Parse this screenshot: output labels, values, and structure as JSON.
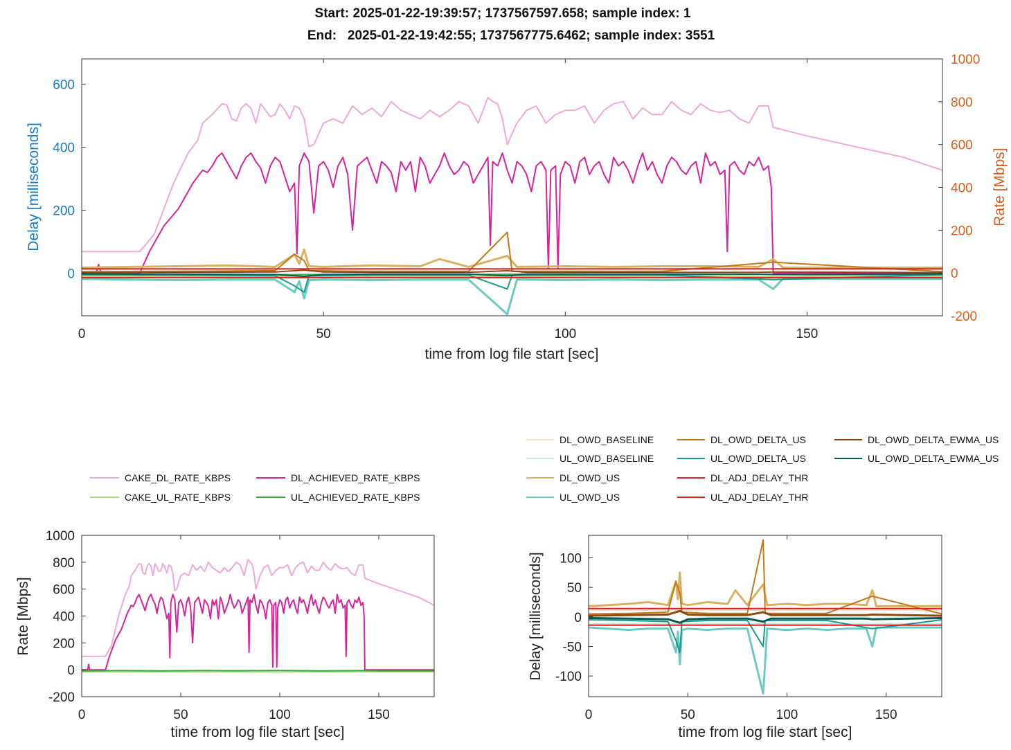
{
  "title": {
    "line1": "Start: 2025-01-22-19:39:57; 1737567597.658; sample index: 1",
    "line2": "End:   2025-01-22-19:42:55; 1737567775.6462; sample index: 3551"
  },
  "colors": {
    "cake_dl": "#f0a8d8",
    "dl_achieved": "#d4259c",
    "cake_ul": "#a8dc88",
    "ul_achieved": "#3da83a",
    "dl_owd_baseline": "#f6dcc0",
    "ul_owd_baseline": "#c6ece6",
    "dl_owd_us": "#d8b060",
    "ul_owd_us": "#6ccac0",
    "dl_owd_delta": "#c07818",
    "ul_owd_delta": "#1a9a8a",
    "dl_adj_thr": "#e02020",
    "ul_adj_thr": "#e02020",
    "dl_ewma": "#8a4a12",
    "ul_ewma": "#0a5a50",
    "left_axis": "#1a7ac0",
    "right_axis": "#d95f1a"
  },
  "legend_rate": [
    {
      "label": "CAKE_DL_RATE_KBPS",
      "color": "#f0a8d8"
    },
    {
      "label": "DL_ACHIEVED_RATE_KBPS",
      "color": "#d4259c"
    },
    {
      "label": "CAKE_UL_RATE_KBPS",
      "color": "#a8dc88"
    },
    {
      "label": "UL_ACHIEVED_RATE_KBPS",
      "color": "#3da83a"
    }
  ],
  "legend_delay": [
    {
      "label": "DL_OWD_BASELINE",
      "color": "#f6dcc0"
    },
    {
      "label": "DL_OWD_DELTA_US",
      "color": "#c07818"
    },
    {
      "label": "DL_OWD_DELTA_EWMA_US",
      "color": "#8a4a12"
    },
    {
      "label": "UL_OWD_BASELINE",
      "color": "#c6ece6"
    },
    {
      "label": "UL_OWD_DELTA_US",
      "color": "#1a9a8a"
    },
    {
      "label": "UL_OWD_DELTA_EWMA_US",
      "color": "#0a5a50"
    },
    {
      "label": "DL_OWD_US",
      "color": "#d8b060"
    },
    {
      "label": "DL_ADJ_DELAY_THR",
      "color": "#e02020"
    },
    {
      "label": "UL_OWD_US",
      "color": "#6ccac0"
    },
    {
      "label": "UL_ADJ_DELAY_THR",
      "color": "#e02020"
    }
  ],
  "chart_data": [
    {
      "type": "line",
      "id": "top",
      "xlabel": "time from log file start [sec]",
      "ylabel": "Delay [milliseconds]",
      "y2label": "Rate [Mbps]",
      "xlim": [
        0,
        178
      ],
      "ylim": [
        -135,
        680
      ],
      "y2lim": [
        -200,
        1000
      ],
      "xticks": [
        0,
        50,
        100,
        150
      ],
      "yticks": [
        0,
        200,
        400,
        600
      ],
      "y2ticks": [
        -200,
        0,
        200,
        400,
        600,
        800,
        1000
      ],
      "grid": false,
      "series_axes": {
        "rate": "right",
        "delay": "left"
      }
    },
    {
      "type": "line",
      "id": "rate",
      "xlabel": "time from log file start [sec]",
      "ylabel": "Rate [Mbps]",
      "xlim": [
        0,
        178
      ],
      "ylim": [
        -200,
        1000
      ],
      "xticks": [
        0,
        50,
        100,
        150
      ],
      "yticks": [
        -200,
        0,
        200,
        400,
        600,
        800,
        1000
      ],
      "grid": false
    },
    {
      "type": "line",
      "id": "delay",
      "xlabel": "time from log file start [sec]",
      "ylabel": "Delay [milliseconds]",
      "xlim": [
        0,
        178
      ],
      "ylim": [
        -135,
        138
      ],
      "xticks": [
        0,
        50,
        100,
        150
      ],
      "yticks": [
        -100,
        -50,
        0,
        50,
        100
      ],
      "grid": false
    }
  ],
  "series_data": {
    "cake_dl_rate_mbps": {
      "x": [
        0,
        12,
        15,
        19,
        22,
        24,
        25,
        27,
        29,
        30,
        31,
        32,
        33,
        34,
        35,
        36,
        37,
        38,
        39,
        40,
        41,
        42,
        43,
        44,
        45,
        46,
        47,
        48,
        49,
        50,
        52,
        54,
        56,
        58,
        60,
        62,
        64,
        66,
        68,
        70,
        72,
        74,
        76,
        78,
        80,
        82,
        84,
        85,
        86,
        87,
        88,
        90,
        92,
        94,
        96,
        98,
        100,
        102,
        104,
        106,
        108,
        110,
        112,
        114,
        116,
        118,
        120,
        122,
        124,
        126,
        128,
        130,
        132,
        134,
        136,
        138,
        140,
        142,
        143,
        150,
        160,
        170,
        178
      ],
      "y": [
        100,
        100,
        180,
        420,
        560,
        620,
        700,
        740,
        790,
        785,
        720,
        710,
        770,
        790,
        770,
        700,
        790,
        760,
        730,
        740,
        790,
        760,
        720,
        780,
        770,
        720,
        590,
        600,
        650,
        700,
        720,
        700,
        780,
        740,
        770,
        730,
        800,
        760,
        740,
        720,
        760,
        730,
        760,
        800,
        780,
        700,
        820,
        800,
        790,
        720,
        600,
        700,
        760,
        780,
        700,
        740,
        760,
        760,
        780,
        700,
        760,
        790,
        800,
        720,
        770,
        740,
        740,
        800,
        760,
        740,
        790,
        760,
        750,
        760,
        720,
        700,
        780,
        780,
        680,
        640,
        590,
        540,
        480
      ]
    },
    "dl_achieved_mbps": {
      "x": [
        0,
        3,
        3.5,
        4,
        12,
        14,
        17,
        20,
        23,
        25,
        26,
        27,
        28,
        29,
        30,
        31,
        32,
        33,
        34,
        35,
        36,
        37,
        38,
        39,
        40,
        41,
        42,
        43,
        44,
        44.5,
        45,
        46,
        47,
        48,
        49,
        50,
        51,
        52,
        53,
        54,
        55,
        56,
        57,
        58,
        59,
        60,
        61,
        62,
        63,
        64,
        65,
        66,
        67,
        68,
        69,
        70,
        71,
        72,
        73,
        74,
        75,
        76,
        77,
        78,
        79,
        80,
        81,
        82,
        83,
        84,
        84.5,
        85,
        86,
        87,
        88,
        89,
        90,
        91,
        92,
        93,
        94,
        95,
        96,
        96.5,
        97,
        98,
        98.5,
        99,
        100,
        101,
        102,
        103,
        104,
        105,
        106,
        107,
        108,
        109,
        110,
        111,
        112,
        113,
        114,
        115,
        116,
        117,
        118,
        119,
        120,
        121,
        122,
        123,
        124,
        125,
        126,
        127,
        128,
        129,
        130,
        131,
        132,
        133,
        133.5,
        134,
        135,
        136,
        137,
        138,
        139,
        140,
        141,
        142,
        142.6,
        143,
        150,
        160,
        170,
        178
      ],
      "y": [
        0,
        0,
        40,
        0,
        0,
        100,
        220,
        300,
        420,
        480,
        470,
        500,
        540,
        560,
        520,
        480,
        440,
        500,
        540,
        560,
        520,
        490,
        420,
        500,
        540,
        520,
        450,
        380,
        420,
        90,
        500,
        560,
        520,
        280,
        500,
        520,
        480,
        400,
        500,
        540,
        460,
        200,
        500,
        520,
        540,
        480,
        420,
        520,
        500,
        470,
        380,
        520,
        480,
        520,
        380,
        540,
        500,
        420,
        460,
        500,
        560,
        500,
        460,
        480,
        520,
        500,
        420,
        460,
        500,
        540,
        130,
        520,
        500,
        560,
        480,
        420,
        520,
        500,
        460,
        380,
        500,
        520,
        480,
        20,
        480,
        500,
        20,
        460,
        520,
        500,
        420,
        520,
        540,
        460,
        500,
        520,
        460,
        420,
        540,
        500,
        520,
        480,
        420,
        500,
        560,
        480,
        520,
        460,
        420,
        500,
        540,
        520,
        480,
        460,
        500,
        520,
        420,
        560,
        500,
        520,
        460,
        480,
        100,
        500,
        520,
        480,
        460,
        520,
        500,
        540,
        480,
        500,
        400,
        0,
        0,
        0,
        0,
        0
      ]
    },
    "cake_ul_rate_mbps": {
      "x": [
        0,
        178
      ],
      "y": [
        -15,
        -15
      ]
    },
    "ul_achieved_mbps": {
      "x": [
        0,
        20,
        40,
        60,
        80,
        100,
        120,
        143,
        150,
        178
      ],
      "y": [
        -8,
        -6,
        -8,
        -6,
        -7,
        -5,
        -8,
        -6,
        -8,
        -8
      ]
    },
    "dl_owd_us_ms": {
      "x": [
        0,
        10,
        20,
        30,
        40,
        44,
        45,
        46,
        47,
        50,
        60,
        70,
        74,
        80,
        88,
        90,
        100,
        110,
        120,
        130,
        140,
        143,
        145,
        160,
        178
      ],
      "y": [
        18,
        20,
        22,
        25,
        20,
        60,
        30,
        75,
        22,
        20,
        25,
        22,
        45,
        20,
        55,
        20,
        22,
        20,
        22,
        22,
        20,
        45,
        18,
        18,
        18
      ]
    },
    "ul_owd_us_ms": {
      "x": [
        0,
        10,
        20,
        30,
        40,
        44,
        45,
        46,
        47,
        50,
        60,
        70,
        80,
        88,
        90,
        100,
        110,
        120,
        130,
        140,
        143,
        145,
        160,
        178
      ],
      "y": [
        -18,
        -20,
        -22,
        -20,
        -20,
        -60,
        -25,
        -80,
        -22,
        -20,
        -22,
        -20,
        -20,
        -130,
        -20,
        -22,
        -20,
        -22,
        -20,
        -20,
        -50,
        -18,
        -18,
        -18
      ]
    },
    "dl_owd_delta_ms": {
      "x": [
        0,
        20,
        40,
        44,
        46,
        47,
        60,
        80,
        88,
        89,
        100,
        120,
        143,
        178
      ],
      "y": [
        5,
        6,
        8,
        60,
        40,
        8,
        6,
        6,
        130,
        6,
        6,
        6,
        35,
        5
      ]
    },
    "ul_owd_delta_ms": {
      "x": [
        0,
        20,
        40,
        44,
        46,
        47,
        60,
        80,
        88,
        89,
        100,
        120,
        143,
        178
      ],
      "y": [
        -5,
        -6,
        -8,
        -40,
        -60,
        -8,
        -6,
        -6,
        -50,
        -6,
        -6,
        -6,
        -20,
        -5
      ]
    },
    "dl_ewma_ms": {
      "x": [
        0,
        20,
        40,
        46,
        50,
        60,
        80,
        88,
        92,
        100,
        120,
        140,
        143,
        178
      ],
      "y": [
        2,
        3,
        4,
        10,
        4,
        3,
        3,
        8,
        3,
        3,
        3,
        3,
        4,
        2
      ]
    },
    "ul_ewma_ms": {
      "x": [
        0,
        20,
        40,
        46,
        50,
        60,
        80,
        88,
        92,
        100,
        120,
        140,
        143,
        178
      ],
      "y": [
        -2,
        -3,
        -4,
        -10,
        -4,
        -3,
        -3,
        -8,
        -3,
        -3,
        -3,
        -3,
        -4,
        -2
      ]
    },
    "dl_adj_thr_ms": {
      "x": [
        0,
        178
      ],
      "y": [
        14,
        14
      ]
    },
    "ul_adj_thr_ms": {
      "x": [
        0,
        178
      ],
      "y": [
        -14,
        -14
      ]
    },
    "dl_baseline_ms": {
      "x": [
        0,
        178
      ],
      "y": [
        12,
        12
      ]
    },
    "ul_baseline_ms": {
      "x": [
        0,
        178
      ],
      "y": [
        -12,
        -12
      ]
    }
  }
}
